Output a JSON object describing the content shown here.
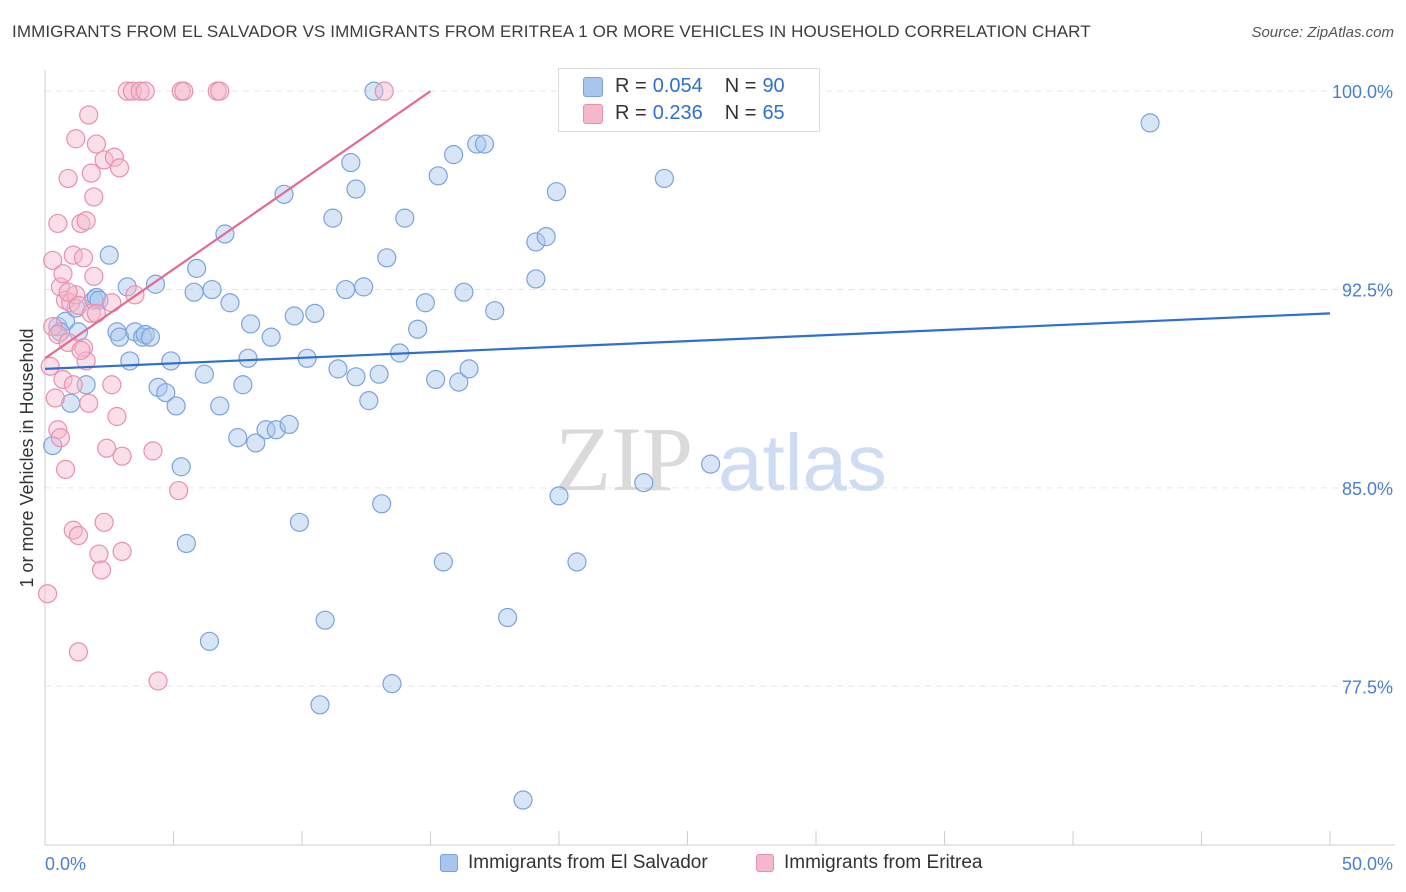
{
  "header": {
    "title": "IMMIGRANTS FROM EL SALVADOR VS IMMIGRANTS FROM ERITREA 1 OR MORE VEHICLES IN HOUSEHOLD CORRELATION CHART",
    "source": "Source: ZipAtlas.com"
  },
  "watermark": {
    "zip": "ZIP",
    "atlas": "atlas"
  },
  "stats": {
    "rows": [
      {
        "r_label": "R = ",
        "r_value": "0.054",
        "n_label": "N = ",
        "n_value": "90",
        "color": "#a9c5ee"
      },
      {
        "r_label": "R = ",
        "r_value": "0.236",
        "n_label": "N = ",
        "n_value": "65",
        "color": "#f5b8cb"
      }
    ]
  },
  "legend": {
    "items": [
      {
        "label": "Immigrants from El Salvador",
        "color": "#a9c5ee"
      },
      {
        "label": "Immigrants from Eritrea",
        "color": "#f5b8cb"
      }
    ]
  },
  "colors": {
    "blue_fill": "#a9c5ee",
    "blue_stroke": "#7aa3de",
    "blue_line": "#2f6fcf",
    "pink_fill": "#f5b8cb",
    "pink_stroke": "#e890ad",
    "pink_line": "#e46a93",
    "axis_label": "#4a7fd0",
    "grid": "#e6e6e6"
  },
  "chart_data": {
    "type": "scatter",
    "title": "IMMIGRANTS FROM EL SALVADOR VS IMMIGRANTS FROM ERITREA 1 OR MORE VEHICLES IN HOUSEHOLD CORRELATION CHART",
    "xlabel": "",
    "ylabel": "1 or more Vehicles in Household",
    "xlim": [
      0,
      50
    ],
    "ylim": [
      71.5,
      100.8
    ],
    "x_tick_labels": [
      "0.0%",
      "50.0%"
    ],
    "y_ticks": [
      77.5,
      85.0,
      92.5,
      100.0
    ],
    "y_tick_labels": [
      "77.5%",
      "85.0%",
      "92.5%",
      "100.0%"
    ],
    "grid": true,
    "legend_position": "bottom",
    "series": [
      {
        "name": "Immigrants from El Salvador",
        "trend": {
          "x": [
            0,
            50
          ],
          "y": [
            89.5,
            91.6
          ]
        },
        "points": [
          [
            0.3,
            86.6
          ],
          [
            0.5,
            91.1
          ],
          [
            0.8,
            91.3
          ],
          [
            1.0,
            88.2
          ],
          [
            1.3,
            90.9
          ],
          [
            1.6,
            88.9
          ],
          [
            1.9,
            92.1
          ],
          [
            2.0,
            92.2
          ],
          [
            2.1,
            92.1
          ],
          [
            2.5,
            93.8
          ],
          [
            2.8,
            90.9
          ],
          [
            2.9,
            90.7
          ],
          [
            3.2,
            92.6
          ],
          [
            3.3,
            89.8
          ],
          [
            3.5,
            90.9
          ],
          [
            3.8,
            90.7
          ],
          [
            3.9,
            90.8
          ],
          [
            4.3,
            92.7
          ],
          [
            4.4,
            88.8
          ],
          [
            4.7,
            88.6
          ],
          [
            4.9,
            89.8
          ],
          [
            5.1,
            88.1
          ],
          [
            5.3,
            85.8
          ],
          [
            5.5,
            82.9
          ],
          [
            5.8,
            92.4
          ],
          [
            5.9,
            93.3
          ],
          [
            6.2,
            89.3
          ],
          [
            6.4,
            79.2
          ],
          [
            6.5,
            92.5
          ],
          [
            6.8,
            88.1
          ],
          [
            7.0,
            94.6
          ],
          [
            7.2,
            92.0
          ],
          [
            7.5,
            86.9
          ],
          [
            7.7,
            88.9
          ],
          [
            8.0,
            91.2
          ],
          [
            8.2,
            86.7
          ],
          [
            8.6,
            87.2
          ],
          [
            8.8,
            90.7
          ],
          [
            9.0,
            87.2
          ],
          [
            9.3,
            96.1
          ],
          [
            9.5,
            87.4
          ],
          [
            9.7,
            91.5
          ],
          [
            9.9,
            83.7
          ],
          [
            10.2,
            89.9
          ],
          [
            10.5,
            91.6
          ],
          [
            10.7,
            76.8
          ],
          [
            10.9,
            80.0
          ],
          [
            11.2,
            95.2
          ],
          [
            11.4,
            89.5
          ],
          [
            11.7,
            92.5
          ],
          [
            11.9,
            97.3
          ],
          [
            12.1,
            89.2
          ],
          [
            12.1,
            96.3
          ],
          [
            12.4,
            92.6
          ],
          [
            12.6,
            88.3
          ],
          [
            12.8,
            100.0
          ],
          [
            13.0,
            89.3
          ],
          [
            13.1,
            84.4
          ],
          [
            13.3,
            93.7
          ],
          [
            13.5,
            77.6
          ],
          [
            13.8,
            90.1
          ],
          [
            14.0,
            95.2
          ],
          [
            14.5,
            91.0
          ],
          [
            14.8,
            92.0
          ],
          [
            15.2,
            89.1
          ],
          [
            15.3,
            96.8
          ],
          [
            15.5,
            82.2
          ],
          [
            15.9,
            97.6
          ],
          [
            16.1,
            89.0
          ],
          [
            16.3,
            92.4
          ],
          [
            16.5,
            89.5
          ],
          [
            16.8,
            98.0
          ],
          [
            17.1,
            98.0
          ],
          [
            17.5,
            91.7
          ],
          [
            18.0,
            80.1
          ],
          [
            18.6,
            73.2
          ],
          [
            19.1,
            94.3
          ],
          [
            19.1,
            92.9
          ],
          [
            19.5,
            94.5
          ],
          [
            19.9,
            96.2
          ],
          [
            20.0,
            84.7
          ],
          [
            20.7,
            82.2
          ],
          [
            23.3,
            85.2
          ],
          [
            24.1,
            96.7
          ],
          [
            25.9,
            85.9
          ],
          [
            43.0,
            98.8
          ],
          [
            0.6,
            90.9
          ],
          [
            1.2,
            91.8
          ],
          [
            4.1,
            90.7
          ],
          [
            7.9,
            89.9
          ]
        ]
      },
      {
        "name": "Immigrants from Eritrea",
        "trend": {
          "x": [
            0,
            15.0
          ],
          "y": [
            89.9,
            100.0
          ]
        },
        "points": [
          [
            0.1,
            81.0
          ],
          [
            0.2,
            89.6
          ],
          [
            0.3,
            93.6
          ],
          [
            0.3,
            91.1
          ],
          [
            0.4,
            88.4
          ],
          [
            0.5,
            87.2
          ],
          [
            0.5,
            95.0
          ],
          [
            0.5,
            90.8
          ],
          [
            0.6,
            92.6
          ],
          [
            0.6,
            86.9
          ],
          [
            0.7,
            93.1
          ],
          [
            0.7,
            89.1
          ],
          [
            0.8,
            92.1
          ],
          [
            0.8,
            85.7
          ],
          [
            0.9,
            96.7
          ],
          [
            0.9,
            90.5
          ],
          [
            1.0,
            92.0
          ],
          [
            1.1,
            83.4
          ],
          [
            1.1,
            93.8
          ],
          [
            1.1,
            88.9
          ],
          [
            1.2,
            98.2
          ],
          [
            1.2,
            92.3
          ],
          [
            1.3,
            91.9
          ],
          [
            1.3,
            83.2
          ],
          [
            1.3,
            78.8
          ],
          [
            1.4,
            95.0
          ],
          [
            1.5,
            93.7
          ],
          [
            1.5,
            90.3
          ],
          [
            1.6,
            89.8
          ],
          [
            1.6,
            95.1
          ],
          [
            1.7,
            99.1
          ],
          [
            1.7,
            88.2
          ],
          [
            1.8,
            91.6
          ],
          [
            1.8,
            96.9
          ],
          [
            1.9,
            96.0
          ],
          [
            1.9,
            93.0
          ],
          [
            2.0,
            98.0
          ],
          [
            2.0,
            91.6
          ],
          [
            2.1,
            82.5
          ],
          [
            2.2,
            81.9
          ],
          [
            2.3,
            97.4
          ],
          [
            2.3,
            83.7
          ],
          [
            2.4,
            86.5
          ],
          [
            2.6,
            88.9
          ],
          [
            2.6,
            92.0
          ],
          [
            2.7,
            97.5
          ],
          [
            2.8,
            87.7
          ],
          [
            2.9,
            97.1
          ],
          [
            3.0,
            86.2
          ],
          [
            3.0,
            82.6
          ],
          [
            3.2,
            100.0
          ],
          [
            3.4,
            100.0
          ],
          [
            3.5,
            92.3
          ],
          [
            3.7,
            100.0
          ],
          [
            3.9,
            100.0
          ],
          [
            4.2,
            86.4
          ],
          [
            4.4,
            77.7
          ],
          [
            5.2,
            84.9
          ],
          [
            5.3,
            100.0
          ],
          [
            5.4,
            100.0
          ],
          [
            6.7,
            100.0
          ],
          [
            6.8,
            100.0
          ],
          [
            13.2,
            100.0
          ],
          [
            1.4,
            90.2
          ],
          [
            0.9,
            92.4
          ]
        ]
      }
    ]
  }
}
